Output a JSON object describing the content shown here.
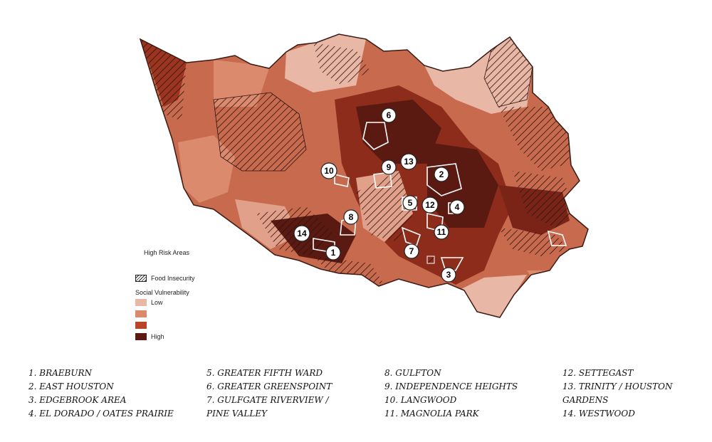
{
  "legend": {
    "title": "High Risk Areas",
    "food_insecurity": "Food Insecurity",
    "social_vulnerability": "Social Vulnerability",
    "levels": [
      {
        "label": "Low",
        "color": "#e8b7a6"
      },
      {
        "label": "",
        "color": "#db8a6e"
      },
      {
        "label": "",
        "color": "#b8452a"
      },
      {
        "label": "High",
        "color": "#5a1a12"
      }
    ]
  },
  "markers": [
    "1",
    "2",
    "3",
    "4",
    "5",
    "6",
    "7",
    "8",
    "9",
    "10",
    "11",
    "12",
    "13",
    "14"
  ],
  "areas": {
    "col1": [
      "1. BRAEBURN",
      "2. EAST HOUSTON",
      "3. EDGEBROOK AREA",
      "4. EL DORADO / OATES PRAIRIE"
    ],
    "col2": [
      "5. GREATER FIFTH WARD",
      "6. GREATER GREENSPOINT",
      "7. GULFGATE RIVERVIEW /",
      "PINE VALLEY"
    ],
    "col3": [
      "8. GULFTON",
      "9. INDEPENDENCE HEIGHTS",
      "10. LANGWOOD",
      "11. MAGNOLIA PARK"
    ],
    "col4": [
      "12. SETTEGAST",
      "13. TRINITY / HOUSTON",
      "GARDENS",
      "14. WESTWOOD"
    ]
  }
}
